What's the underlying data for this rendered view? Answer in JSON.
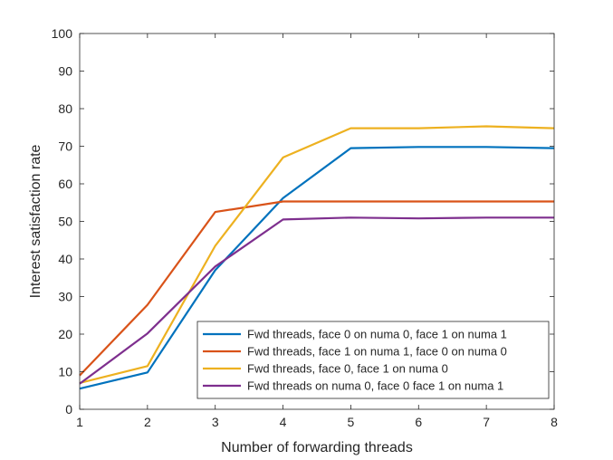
{
  "chart_data": {
    "type": "line",
    "title": "",
    "xlabel": "Number of forwarding threads",
    "ylabel": "Interest satisfaction rate",
    "xlim": [
      1,
      8
    ],
    "ylim": [
      0,
      100
    ],
    "xticks": [
      1,
      2,
      3,
      4,
      5,
      6,
      7,
      8
    ],
    "yticks": [
      0,
      10,
      20,
      30,
      40,
      50,
      60,
      70,
      80,
      90,
      100
    ],
    "grid": false,
    "legend_position": "bottom-right",
    "x": [
      1,
      2,
      3,
      4,
      5,
      6,
      7,
      8
    ],
    "series": [
      {
        "name": "Fwd threads, face 0 on numa 0, face 1 on numa 1",
        "color": "#0072BD",
        "values": [
          5.5,
          9.8,
          37,
          56.2,
          69.5,
          69.8,
          69.8,
          69.5
        ]
      },
      {
        "name": "Fwd threads, face 1 on numa 1, face 0 on numa 0",
        "color": "#D95319",
        "values": [
          9,
          27.8,
          52.5,
          55.3,
          55.3,
          55.3,
          55.3,
          55.3
        ]
      },
      {
        "name": "Fwd threads, face 0, face 1 on numa 0",
        "color": "#EDB120",
        "values": [
          7,
          11.5,
          43.5,
          67,
          74.8,
          74.8,
          75.3,
          74.8
        ]
      },
      {
        "name": "Fwd threads on numa 0, face 0 face 1 on numa 1",
        "color": "#7E2F8E",
        "values": [
          6.8,
          20.2,
          38,
          50.5,
          51,
          50.8,
          51,
          51
        ]
      }
    ]
  }
}
